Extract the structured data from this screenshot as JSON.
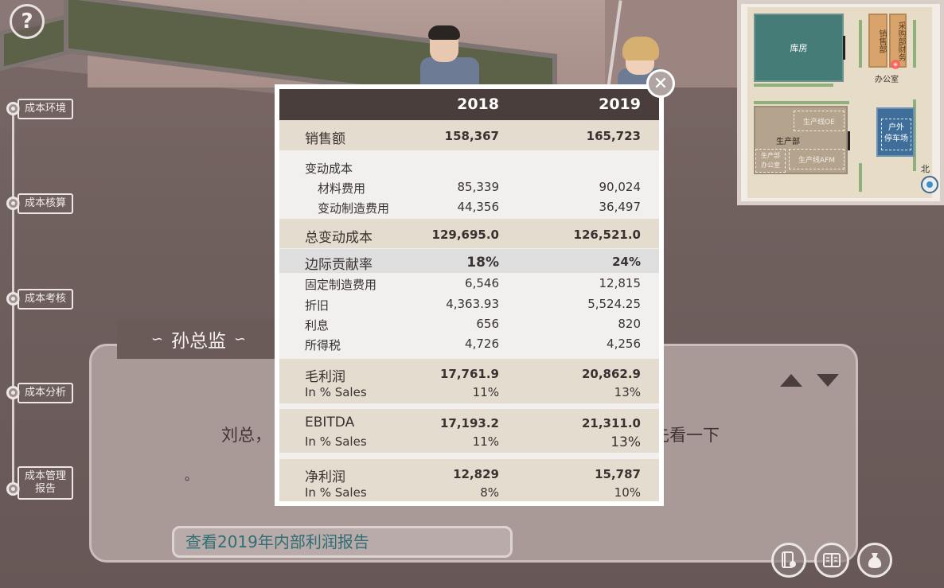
{
  "help": {
    "label": "?"
  },
  "nav": [
    {
      "label": "成本环境"
    },
    {
      "label": "成本核算"
    },
    {
      "label": "成本考核"
    },
    {
      "label": "成本分析"
    },
    {
      "label": "成本管理\n报告"
    }
  ],
  "minimap": {
    "storage": "库房",
    "sales": "销售部",
    "purchase": "采购部财务",
    "office": "办公室",
    "production": "生产部",
    "line_oe": "生产线OE",
    "prod_office": "生产部\n办公室",
    "line_afm": "生产线AFM",
    "parking": "户外\n停车场",
    "north": "北"
  },
  "dialogue": {
    "speaker": "孙总监",
    "text_left": "刘总，",
    "text_right": "先看一下",
    "text_line2": "。",
    "choice": "查看2019年内部利润报告"
  },
  "report": {
    "header": {
      "y2018": "2018",
      "y2019": "2019"
    },
    "sales": {
      "label": "销售额",
      "v2018": "158,367",
      "v2019": "165,723"
    },
    "variable_cost": {
      "label": "变动成本"
    },
    "material": {
      "label": "材料费用",
      "v2018": "85,339",
      "v2019": "90,024"
    },
    "var_mfg": {
      "label": "变动制造费用",
      "v2018": "44,356",
      "v2019": "36,497"
    },
    "total_var": {
      "label": "总变动成本",
      "v2018": "129,695.0",
      "v2019": "126,521.0"
    },
    "margin": {
      "label": "边际贡献率",
      "v2018": "18%",
      "v2019": "24%"
    },
    "fixed_mfg": {
      "label": "固定制造费用",
      "v2018": "6,546",
      "v2019": "12,815"
    },
    "depreciation": {
      "label": "折旧",
      "v2018": "4,363.93",
      "v2019": "5,524.25"
    },
    "interest": {
      "label": "利息",
      "v2018": "656",
      "v2019": "820"
    },
    "income_tax": {
      "label": "所得税",
      "v2018": "4,726",
      "v2019": "4,256"
    },
    "gross_profit": {
      "label": "毛利润",
      "v2018": "17,761.9",
      "v2019": "20,862.9"
    },
    "gross_pct": {
      "label": "In % Sales",
      "v2018": "11%",
      "v2019": "13%"
    },
    "ebitda": {
      "label": "EBITDA",
      "v2018": "17,193.2",
      "v2019": "21,311.0"
    },
    "ebitda_pct": {
      "label": "In % Sales",
      "v2018": "11%",
      "v2019": "13%"
    },
    "net_profit": {
      "label": "净利润",
      "v2018": "12,829",
      "v2019": "15,787"
    },
    "net_pct": {
      "label": "In % Sales",
      "v2018": "8%",
      "v2019": "10%"
    }
  },
  "close": {
    "label": "✕"
  },
  "colors": {
    "header_bg": "#4a3e3c",
    "band": "#e4dccf",
    "choice_text": "#2e6e74"
  }
}
